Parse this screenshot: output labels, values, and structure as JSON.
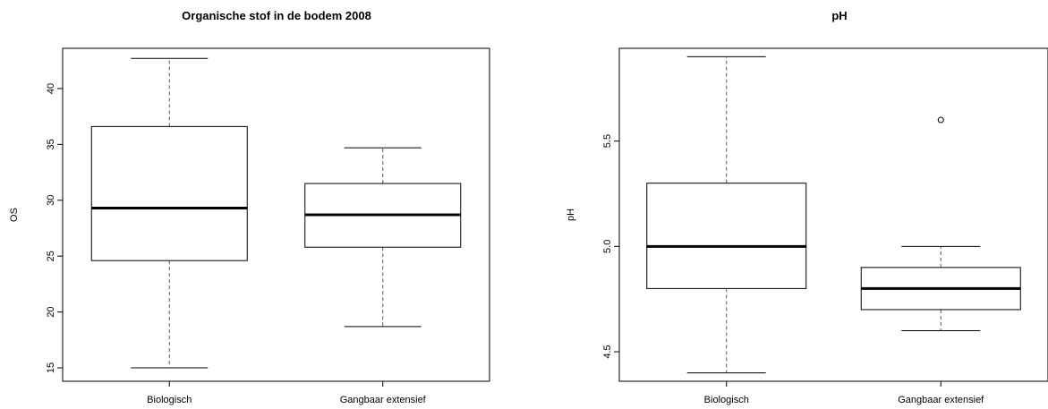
{
  "chart_data": [
    {
      "type": "boxplot",
      "title": "Organische stof in de bodem 2008",
      "xlabel": "",
      "ylabel": "OS",
      "categories": [
        "Biologisch",
        "Gangbaar extensief"
      ],
      "ylim": [
        13.8,
        43.6
      ],
      "yticks": [
        15,
        20,
        25,
        30,
        35,
        40
      ],
      "ytick_labels": [
        "15",
        "20",
        "25",
        "30",
        "35",
        "40"
      ],
      "boxes": [
        {
          "name": "Biologisch",
          "min": 15.0,
          "q1": 24.6,
          "median": 29.3,
          "q3": 36.6,
          "max": 42.7,
          "outliers": []
        },
        {
          "name": "Gangbaar extensief",
          "min": 18.7,
          "q1": 25.8,
          "median": 28.7,
          "q3": 31.5,
          "max": 34.7,
          "outliers": []
        }
      ]
    },
    {
      "type": "boxplot",
      "title": "pH",
      "xlabel": "",
      "ylabel": "pH",
      "categories": [
        "Biologisch",
        "Gangbaar extensief"
      ],
      "ylim": [
        4.36,
        5.94
      ],
      "yticks": [
        4.5,
        5.0,
        5.5
      ],
      "ytick_labels": [
        "4.5",
        "5.0",
        "5.5"
      ],
      "boxes": [
        {
          "name": "Biologisch",
          "min": 4.4,
          "q1": 4.8,
          "median": 5.0,
          "q3": 5.3,
          "max": 5.9,
          "outliers": []
        },
        {
          "name": "Gangbaar extensief",
          "min": 4.6,
          "q1": 4.7,
          "median": 4.8,
          "q3": 4.9,
          "max": 5.0,
          "outliers": [
            5.6
          ]
        }
      ]
    }
  ]
}
